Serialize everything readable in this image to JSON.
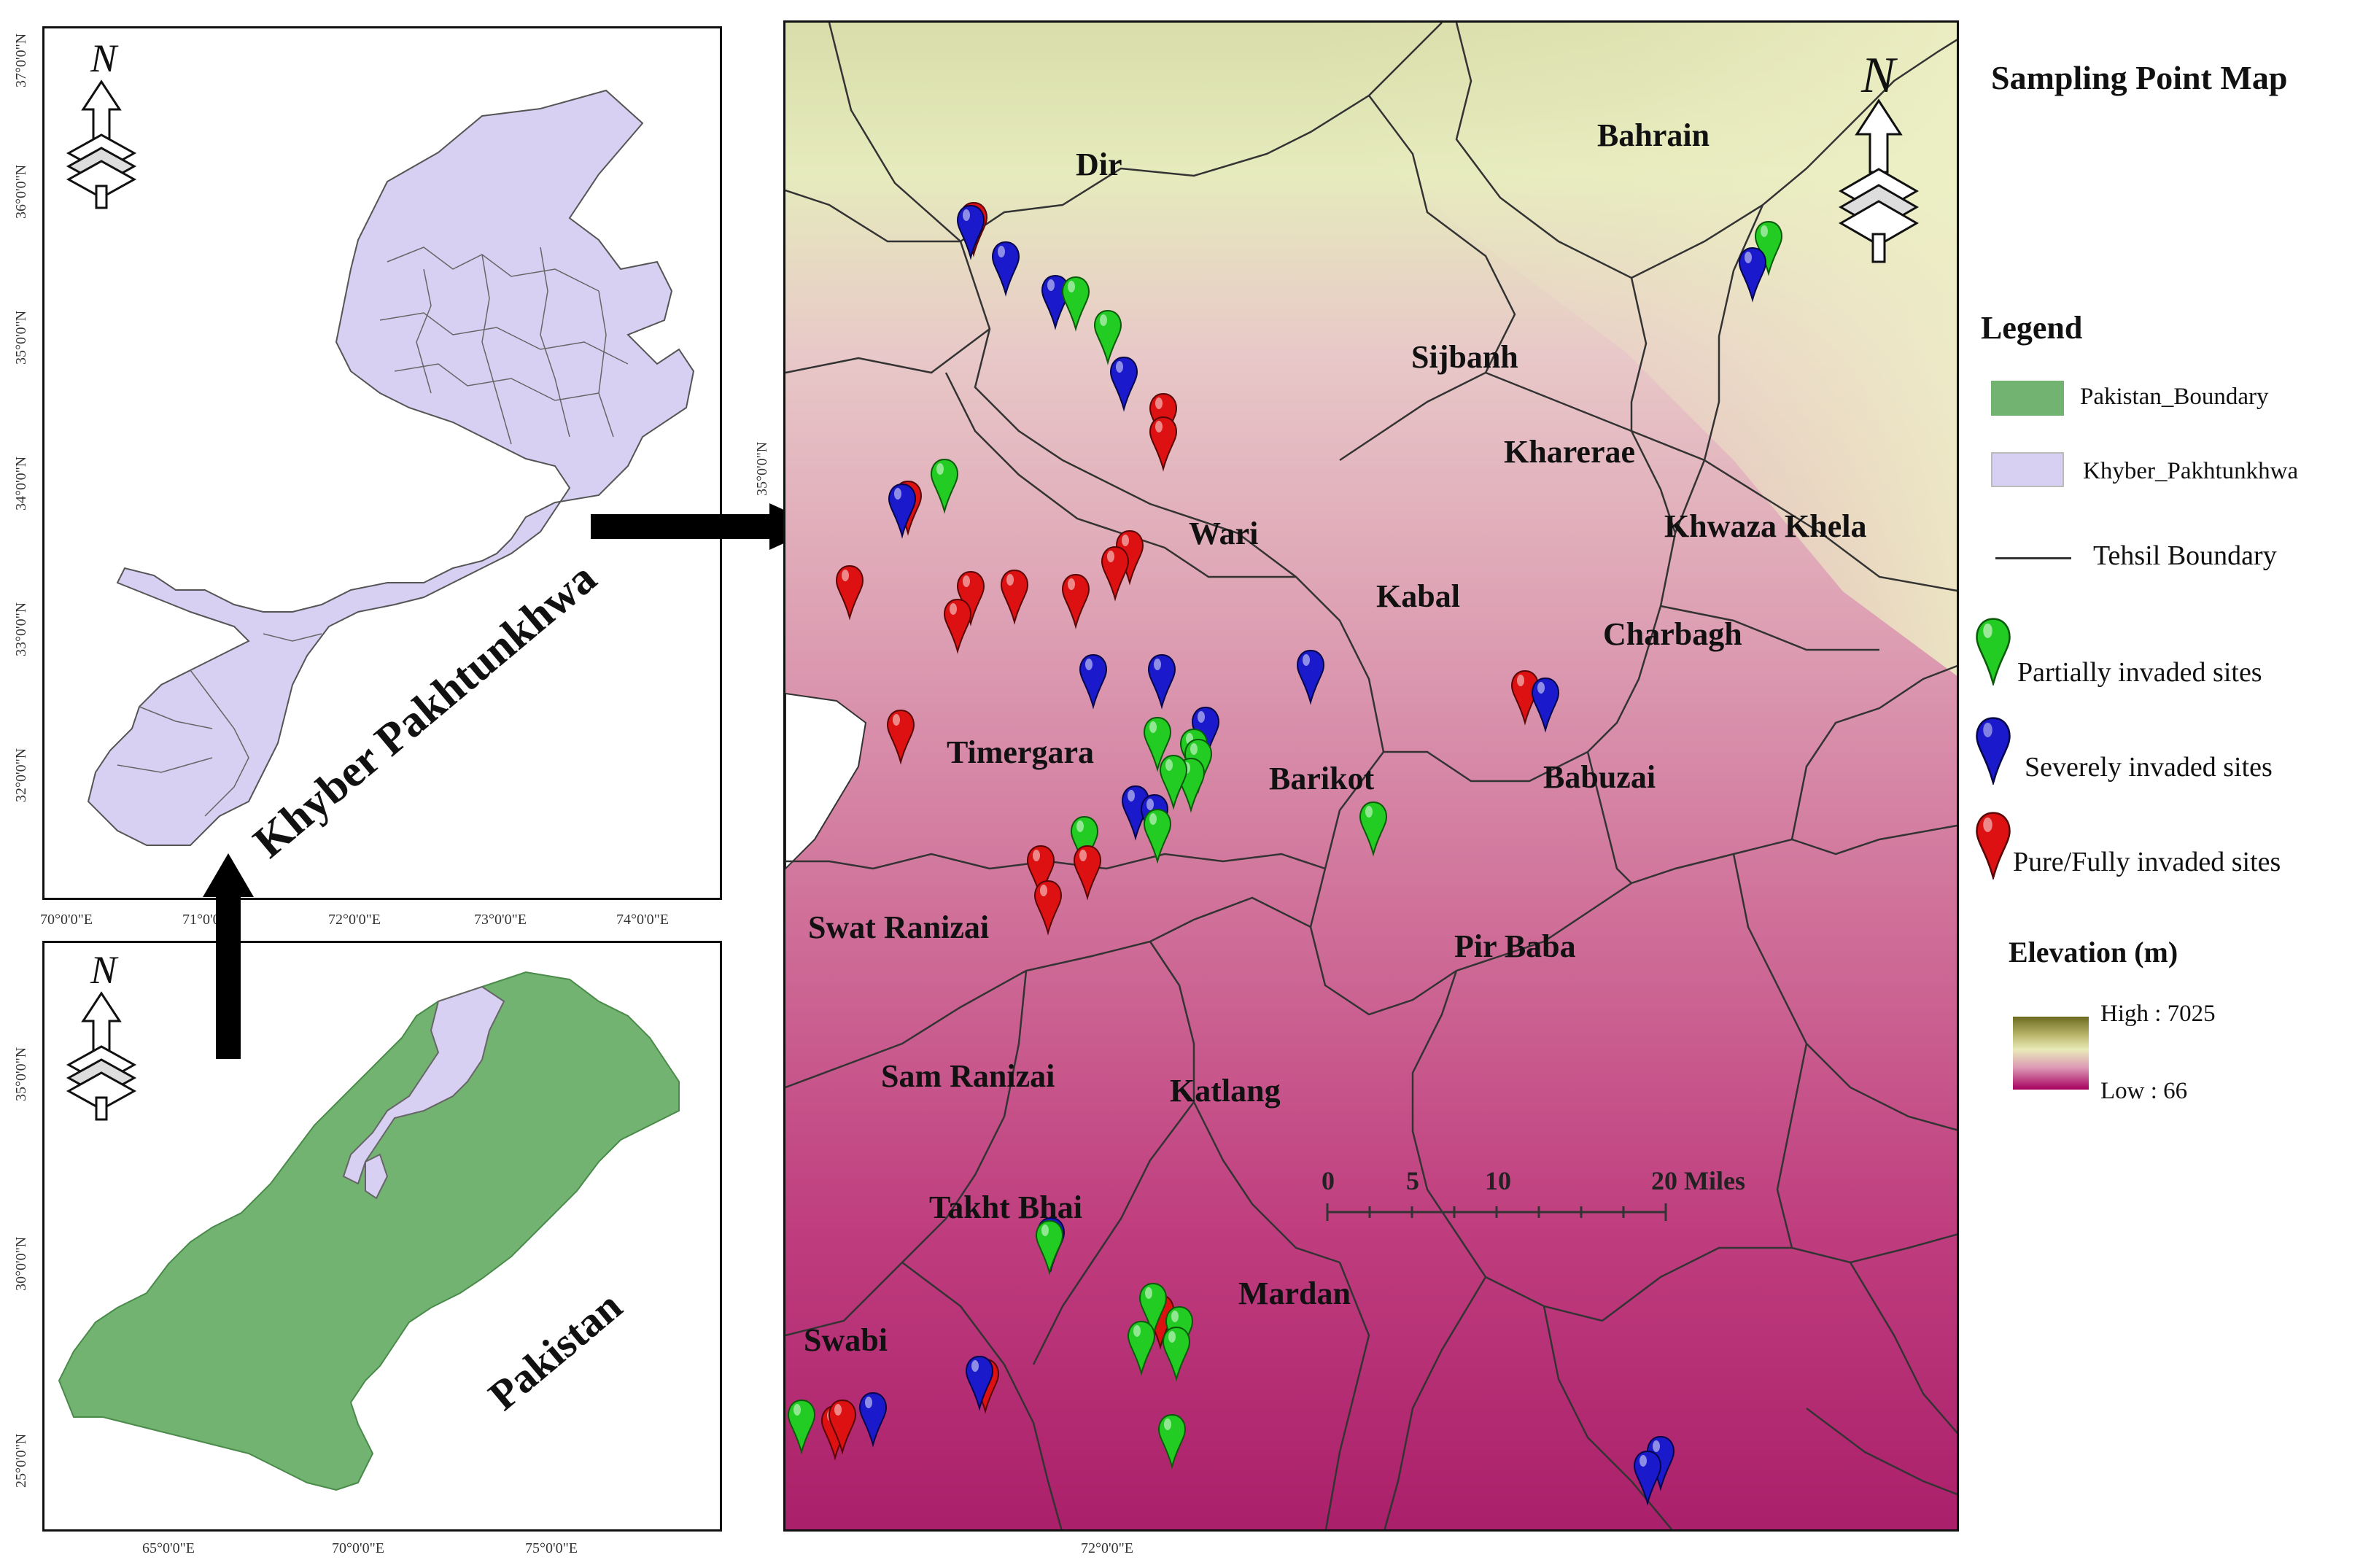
{
  "main_map": {
    "tehsils": [
      "Dir",
      "Bahrain",
      "Sijbanh",
      "Kharerae",
      "Khwaza Khela",
      "Wari",
      "Kabal",
      "Charbagh",
      "Timergara",
      "Barikot",
      "Babuzai",
      "Swat Ranizai",
      "Pir Baba",
      "Sam Ranizai",
      "Katlang",
      "Takht Bhai",
      "Mardan",
      "Swabi"
    ],
    "bottom_coord": "72°0'0\"E",
    "left_coord": "35°0'0\"N",
    "scale": {
      "ticks": [
        "0",
        "5",
        "10",
        "20 Miles"
      ]
    },
    "north_label": "N"
  },
  "kp_map": {
    "title": "Khyber Pakhtunkhwa",
    "lat_labels": [
      "37°0'0\"N",
      "36°0'0\"N",
      "35°0'0\"N",
      "34°0'0\"N",
      "33°0'0\"N",
      "32°0'0\"N"
    ],
    "lon_labels": [
      "70°0'0\"E",
      "71°0'0\"E",
      "72°0'0\"E",
      "73°0'0\"E",
      "74°0'0\"E"
    ],
    "north_label": "N"
  },
  "pakistan_map": {
    "title": "Pakistan",
    "lat_labels": [
      "35°0'0\"N",
      "30°0'0\"N",
      "25°0'0\"N"
    ],
    "lon_labels": [
      "65°0'0\"E",
      "70°0'0\"E",
      "75°0'0\"E"
    ],
    "north_label": "N"
  },
  "legend": {
    "map_title": "Sampling Point Map",
    "title": "Legend",
    "pakistan_boundary": "Pakistan_Boundary",
    "kp_boundary": "Khyber_Pakhtunkhwa",
    "tehsil_boundary": "Tehsil Boundary",
    "partially": "Partially invaded sites",
    "severely": "Severely invaded sites",
    "pure": "Pure/Fully invaded sites",
    "elevation_title": "Elevation (m)",
    "high": "High : 7025",
    "low": "Low : 66"
  },
  "colors": {
    "pakistan_fill": "#72b372",
    "kp_fill": "#d7d0f3",
    "partially": "#22cc22",
    "severely": "#1a1acc",
    "pure": "#dd1111",
    "elev_high": "#6b6a1e",
    "elev_mid": "#e9ebb9",
    "elev_low": "#a6005f"
  }
}
